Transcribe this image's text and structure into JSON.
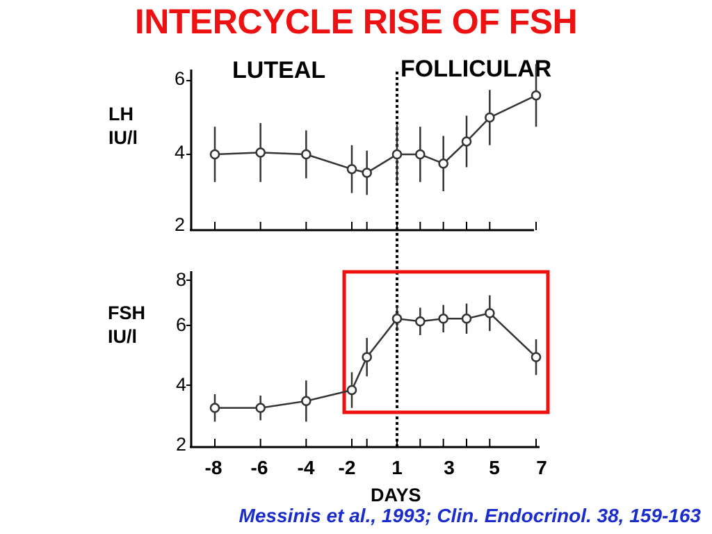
{
  "title": "INTERCYCLE RISE OF FSH",
  "phase_labels": {
    "luteal": "LUTEAL",
    "follicular": "FOLLICULAR"
  },
  "citation": "Messinis et al., 1993; Clin. Endocrinol. 38, 159-163",
  "colors": {
    "title": "#ee1111",
    "highlight_box": "#ee1111",
    "citation": "#1a2ccc",
    "series": "#333333"
  },
  "chart_data": [
    {
      "type": "line",
      "name": "lh",
      "ylabel_lines": [
        "LH",
        "IU/l"
      ],
      "ylim": [
        2,
        6
      ],
      "yticks": [
        "6",
        "4",
        "2"
      ],
      "x": [
        -8,
        -6,
        -4,
        -2,
        -1,
        1,
        2,
        3,
        4,
        5,
        7
      ],
      "values": [
        4.0,
        4.05,
        4.0,
        3.6,
        3.5,
        4.0,
        4.0,
        3.75,
        4.35,
        5.0,
        5.6
      ],
      "error": [
        0.75,
        0.8,
        0.65,
        0.65,
        0.6,
        0.8,
        0.75,
        0.75,
        0.7,
        0.75,
        0.85
      ]
    },
    {
      "type": "line",
      "name": "fsh",
      "ylabel_lines": [
        "FSH",
        "IU/l"
      ],
      "ylim": [
        2,
        8
      ],
      "yticks": [
        "8",
        "6",
        "4",
        "2"
      ],
      "x": [
        -8,
        -6,
        -4,
        -2,
        -1,
        1,
        2,
        3,
        4,
        5,
        7
      ],
      "values": [
        3.35,
        3.35,
        3.6,
        4.0,
        5.2,
        6.6,
        6.5,
        6.6,
        6.6,
        6.8,
        5.2
      ],
      "error": [
        0.5,
        0.45,
        0.75,
        0.65,
        0.7,
        0.45,
        0.5,
        0.5,
        0.55,
        0.65,
        0.65
      ],
      "xticks": [
        "-8",
        "-6",
        "-4",
        "-2",
        "1",
        "3",
        "5",
        "7"
      ],
      "xlabel": "DAYS"
    }
  ]
}
